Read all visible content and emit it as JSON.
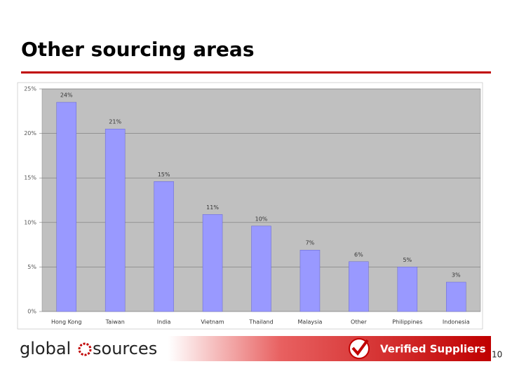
{
  "title": "Other sourcing areas",
  "chart_data": {
    "type": "bar",
    "categories": [
      "Hong Kong",
      "Taiwan",
      "India",
      "Vietnam",
      "Thailand",
      "Malaysia",
      "Other",
      "Philippines",
      "Indonesia"
    ],
    "values": [
      23.5,
      20.5,
      14.6,
      10.9,
      9.6,
      6.9,
      5.6,
      5.0,
      3.3
    ],
    "value_labels": [
      "24%",
      "21%",
      "15%",
      "11%",
      "10%",
      "7%",
      "6%",
      "5%",
      "3%"
    ],
    "color": "#9999ff",
    "ylim": [
      0,
      25
    ],
    "yticks": [
      {
        "value": 0,
        "label": "0%"
      },
      {
        "value": 5,
        "label": "5%"
      },
      {
        "value": 10,
        "label": "10%"
      },
      {
        "value": 15,
        "label": "15%"
      },
      {
        "value": 20,
        "label": "20%"
      },
      {
        "value": 25,
        "label": "25%"
      }
    ],
    "grid": true
  },
  "footer": {
    "logo_left": "global",
    "logo_right": "sources",
    "badge": "Verified Suppliers",
    "page_number": "10"
  }
}
